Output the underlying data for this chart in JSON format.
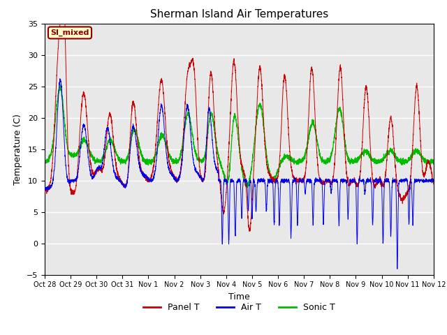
{
  "title": "Sherman Island Air Temperatures",
  "xlabel": "Time",
  "ylabel": "Temperature (C)",
  "ylim": [
    -5,
    35
  ],
  "yticks": [
    -5,
    0,
    5,
    10,
    15,
    20,
    25,
    30,
    35
  ],
  "annotation_text": "SI_mixed",
  "annotation_color": "#8B0000",
  "annotation_bg": "#FFFFCC",
  "bg_color": "#E8E8E8",
  "panel_color": "#CC0000",
  "air_color": "#0000EE",
  "sonic_color": "#00BB00",
  "legend_labels": [
    "Panel T",
    "Air T",
    "Sonic T"
  ],
  "xtick_labels": [
    "Oct 28",
    "Oct 29",
    "Oct 30",
    "Oct 31",
    "Nov 1",
    "Nov 2",
    "Nov 3",
    "Nov 4",
    "Nov 5",
    "Nov 6",
    "Nov 7",
    "Nov 8",
    "Nov 9",
    "Nov 10",
    "Nov 11",
    "Nov 12"
  ],
  "figsize": [
    6.4,
    4.8
  ],
  "dpi": 100
}
